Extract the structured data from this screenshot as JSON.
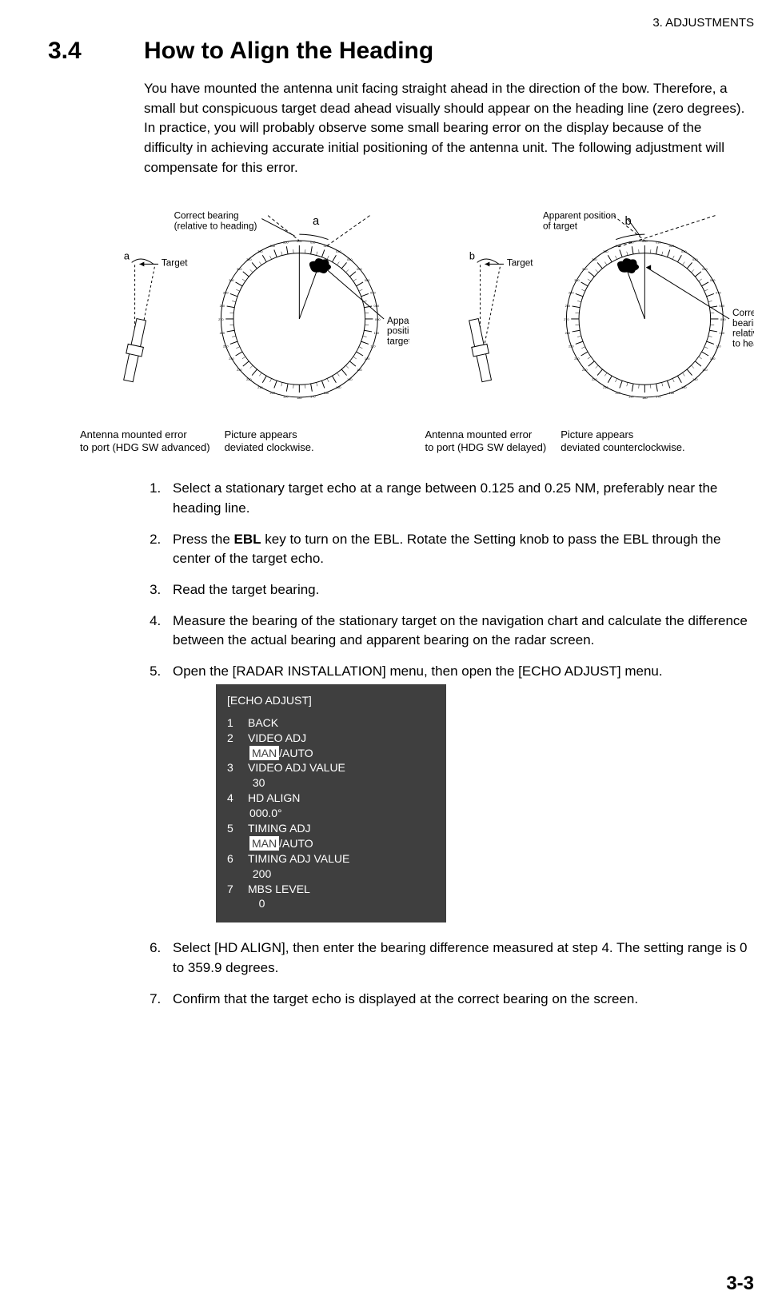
{
  "header": {
    "running": "3.  ADJUSTMENTS",
    "section_number": "3.4",
    "section_title": "How to Align the Heading"
  },
  "intro": "You have mounted the antenna unit facing straight ahead in the direction of the bow. Therefore, a small but conspicuous target dead ahead visually should appear on the heading line (zero degrees). In practice, you will probably observe some small bearing error on the display because of the difficulty in achieving accurate initial positioning of the antenna unit. The following adjustment will compensate for this error.",
  "figure": {
    "background_color": "#ffffff",
    "ring_color": "#000000",
    "tick_color": "#000000",
    "tick_text_fontsize": 4.0,
    "label_fontsize": 12,
    "small_label_fontsize": 12,
    "line_width": 1,
    "dash_pattern": "4,3",
    "target_fill": "#000000",
    "bearing_marks": [
      "000",
      "010",
      "020",
      "030",
      "040",
      "050",
      "060",
      "070",
      "080",
      "090",
      "100",
      "110",
      "120",
      "130",
      "140",
      "150",
      "160",
      "170",
      "180",
      "190",
      "200",
      "210",
      "220",
      "230",
      "240",
      "250",
      "260",
      "270",
      "280",
      "290",
      "300",
      "310",
      "320",
      "330",
      "340",
      "350"
    ],
    "left": {
      "letter": "a",
      "rotation_deg": 20,
      "labels": {
        "correct": "Correct bearing\n(relative to heading)",
        "target": "Target",
        "apparent": "Apparent\nposition of\ntarget",
        "caption_left": "Antenna mounted error\nto port (HDG SW advanced)",
        "caption_right": "Picture appears\ndeviated clockwise."
      }
    },
    "right": {
      "letter": "b",
      "rotation_deg": -20,
      "labels": {
        "apparent": "Apparent position\nof target",
        "target": "Target",
        "correct": "Correct\nbearing\nrelative\nto heading",
        "caption_left": "Antenna mounted error\nto port (HDG SW delayed)",
        "caption_right": "Picture appears\ndeviated counterclockwise."
      }
    }
  },
  "steps": [
    "Select a stationary target echo at a range between 0.125 and 0.25 NM, preferably near the heading line.",
    "Press the <b>EBL</b> key to turn on the EBL. Rotate the Setting knob to pass the EBL through the center of the target echo.",
    "Read the target bearing.",
    "Measure the bearing of the stationary target on the navigation chart and calculate the difference between the actual bearing and apparent bearing on the radar screen.",
    "Open the [RADAR INSTALLATION] menu, then open the [ECHO ADJUST] menu.",
    "Select [HD ALIGN], then enter the bearing difference measured at step 4. The setting range is 0 to 359.9 degrees.",
    "Confirm that the target echo is displayed at the correct bearing on the screen."
  ],
  "menu": {
    "background_color": "#3f3f3f",
    "text_color": "#ffffff",
    "title": "[ECHO ADJUST]",
    "rows": [
      {
        "n": "1",
        "label": "BACK",
        "value": null,
        "inv": false
      },
      {
        "n": "2",
        "label": "VIDEO ADJ",
        "value": "MAN/AUTO",
        "inv": true
      },
      {
        "n": "3",
        "label": "VIDEO ADJ VALUE",
        "value": " 30",
        "inv": false
      },
      {
        "n": "4",
        "label": "HD ALIGN",
        "value": "000.0°",
        "inv": false
      },
      {
        "n": "5",
        "label": "TIMING ADJ",
        "value": "MAN/AUTO",
        "inv": true
      },
      {
        "n": "6",
        "label": "TIMING ADJ VALUE",
        "value": " 200",
        "inv": false
      },
      {
        "n": "7",
        "label": "MBS LEVEL",
        "value": "   0",
        "inv": false
      }
    ]
  },
  "page_number": "3-3"
}
